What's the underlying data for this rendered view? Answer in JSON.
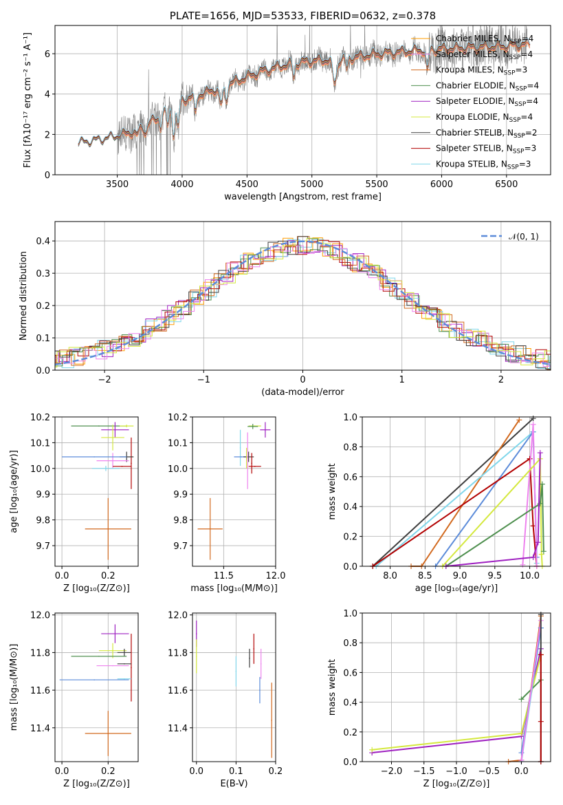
{
  "colors": {
    "Chabrier MILES": "#ff9c00",
    "Salpeter MILES": "#ee82ee",
    "Kroupa MILES": "#d2691e",
    "Chabrier ELODIE": "#4e8f4e",
    "Salpeter ELODIE": "#9e1fc0",
    "Kroupa ELODIE": "#d4e83c",
    "Chabrier STELIB": "#3d3d3d",
    "Salpeter STELIB": "#b20000",
    "Kroupa STELIB": "#7fd6ea",
    "gauss": "#5b8bd9",
    "data": "#808080"
  },
  "chart_data": [
    {
      "type": "line",
      "title": "PLATE=1656, MJD=53533, FIBERID=0632, z=0.378",
      "xlabel": "wavelength [Angstrom, rest frame]",
      "ylabel": "Flux [fλ10⁻¹⁷ erg cm⁻² s⁻¹ A⁻¹]",
      "xlim": [
        3020,
        6840
      ],
      "ylim": [
        0,
        7.4
      ],
      "xticks": [
        3500,
        4000,
        4500,
        5000,
        5500,
        6000,
        6500
      ],
      "yticks": [
        0,
        2,
        4,
        6
      ],
      "legend_position": "top-right",
      "legend": [
        {
          "label": "Chabrier MILES, N",
          "sub": "SSP",
          "tail": "=4"
        },
        {
          "label": "Salpeter MILES, N",
          "sub": "SSP",
          "tail": "=4"
        },
        {
          "label": "Kroupa MILES, N",
          "sub": "SSP",
          "tail": "=3"
        },
        {
          "label": "Chabrier ELODIE, N",
          "sub": "SSP",
          "tail": "=4"
        },
        {
          "label": "Salpeter ELODIE, N",
          "sub": "SSP",
          "tail": "=4"
        },
        {
          "label": "Kroupa ELODIE, N",
          "sub": "SSP",
          "tail": "=4"
        },
        {
          "label": "Chabrier STELIB, N",
          "sub": "SSP",
          "tail": "=2"
        },
        {
          "label": "Salpeter STELIB, N",
          "sub": "SSP",
          "tail": "=3"
        },
        {
          "label": "Kroupa STELIB, N",
          "sub": "SSP",
          "tail": "=3"
        }
      ],
      "continuum": [
        [
          3200,
          1.55
        ],
        [
          3350,
          1.7
        ],
        [
          3500,
          1.9
        ],
        [
          3650,
          2.2
        ],
        [
          3780,
          2.7
        ],
        [
          3900,
          3.2
        ],
        [
          4000,
          3.7
        ],
        [
          4200,
          4.1
        ],
        [
          4400,
          4.6
        ],
        [
          4600,
          5.1
        ],
        [
          4800,
          5.45
        ],
        [
          5000,
          5.65
        ],
        [
          5200,
          5.7
        ],
        [
          5400,
          5.9
        ],
        [
          5600,
          6.05
        ],
        [
          5800,
          6.15
        ],
        [
          6000,
          6.25
        ],
        [
          6200,
          6.3
        ],
        [
          6400,
          6.35
        ],
        [
          6650,
          6.45
        ]
      ]
    },
    {
      "type": "line",
      "xlabel": "(data-model)/error",
      "ylabel": "Normed distribution",
      "xlim": [
        -2.5,
        2.5
      ],
      "ylim": [
        0,
        0.46
      ],
      "xticks": [
        -2,
        -1,
        0,
        1,
        2
      ],
      "yticks": [
        0.0,
        0.1,
        0.2,
        0.3,
        0.4
      ],
      "legend": "𝒩(0, 1)",
      "gauss": {
        "mu": 0,
        "sigma": 1
      }
    },
    {
      "type": "scatter",
      "xlabel": "Z [log₁₀(Z/Z⊙)]",
      "ylabel": "age  [log₁₀(age/yr)]",
      "xlim": [
        -0.03,
        0.33
      ],
      "ylim": [
        9.62,
        10.2
      ],
      "xticks": [
        0.0,
        0.2
      ],
      "yticks": [
        9.7,
        9.8,
        9.9,
        10.0,
        10.1,
        10.2
      ],
      "points": [
        {
          "m": "Chabrier ELODIE",
          "x": 0.16,
          "xe": 0.12,
          "y": 10.165,
          "ye": 0.0
        },
        {
          "m": "Kroupa ELODIE",
          "x": 0.28,
          "xe": 0.03,
          "y": 10.165,
          "ye": 0.005
        },
        {
          "m": "Salpeter ELODIE",
          "x": 0.23,
          "xe": 0.06,
          "y": 10.15,
          "ye": 0.03
        },
        {
          "m": "Kroupa ELODIE",
          "x": 0.22,
          "xe": 0.05,
          "y": 10.12,
          "ye": 0.05
        },
        {
          "m": "Salpeter STELIB",
          "x": 0.3,
          "xe": 0.0,
          "y": 10.02,
          "ye": 0.1
        },
        {
          "m": "Chabrier STELIB",
          "x": 0.28,
          "xe": 0.03,
          "y": 10.045,
          "ye": 0.02
        },
        {
          "m": "Salpeter MILES",
          "x": 0.22,
          "xe": 0.07,
          "y": 10.03,
          "ye": 0.03
        },
        {
          "m": "Kroupa STELIB",
          "x": 0.19,
          "xe": 0.06,
          "y": 10.0,
          "ye": 0.01
        },
        {
          "m": "Salpeter STELIB",
          "x": 0.26,
          "xe": 0.04,
          "y": 10.008,
          "ye": 0.0
        },
        {
          "m": "gauss",
          "x": 0.14,
          "xe": 0.14,
          "y": 10.045,
          "ye": 0.0
        },
        {
          "m": "Kroupa MILES",
          "x": 0.2,
          "xe": 0.1,
          "y": 9.765,
          "ye": 0.12
        }
      ]
    },
    {
      "type": "scatter",
      "xlabel": "mass [log₁₀(M/M⊙)]",
      "xlim": [
        11.2,
        12.0
      ],
      "ylim": [
        9.62,
        10.2
      ],
      "xticks": [
        11.5,
        12.0
      ],
      "yticks": [
        9.7,
        9.8,
        9.9,
        10.0,
        10.1,
        10.2
      ],
      "points": [
        {
          "m": "Kroupa ELODIE",
          "x": 11.8,
          "xe": 0.06,
          "y": 10.165,
          "ye": 0.0
        },
        {
          "m": "Chabrier ELODIE",
          "x": 11.78,
          "xe": 0.05,
          "y": 10.163,
          "ye": 0.01
        },
        {
          "m": "Salpeter ELODIE",
          "x": 11.9,
          "xe": 0.05,
          "y": 10.15,
          "ye": 0.03
        },
        {
          "m": "Kroupa STELIB",
          "x": 11.66,
          "xe": 0.0,
          "y": 10.08,
          "ye": 0.07
        },
        {
          "m": "gauss",
          "x": 11.67,
          "xe": 0.07,
          "y": 10.045,
          "ye": 0.0
        },
        {
          "m": "Chabrier STELIB",
          "x": 11.74,
          "xe": 0.05,
          "y": 10.045,
          "ye": 0.02
        },
        {
          "m": "Salpeter MILES",
          "x": 11.73,
          "xe": 0.0,
          "y": 10.03,
          "ye": 0.11
        },
        {
          "m": "Kroupa ELODIE",
          "x": 11.72,
          "xe": 0.0,
          "y": 10.04,
          "ye": 0.04
        },
        {
          "m": "Salpeter STELIB",
          "x": 11.8,
          "xe": 0.06,
          "y": 10.008,
          "ye": 0.0
        },
        {
          "m": "Salpeter STELIB",
          "x": 11.77,
          "xe": 0.0,
          "y": 10.02,
          "ye": 0.04
        },
        {
          "m": "Kroupa MILES",
          "x": 11.37,
          "xe": 0.12,
          "y": 9.765,
          "ye": 0.12
        }
      ]
    },
    {
      "type": "line",
      "xlabel": "age  [log₁₀(age/yr)]",
      "ylabel": "mass weight",
      "xlim": [
        7.6,
        10.3
      ],
      "ylim": [
        0,
        1.0
      ],
      "xticks": [
        8.0,
        8.5,
        9.0,
        9.5,
        10.0
      ],
      "yticks": [
        0.0,
        0.2,
        0.4,
        0.6,
        0.8,
        1.0
      ],
      "series": [
        {
          "m": "Chabrier STELIB",
          "x": [
            7.75,
            10.05
          ],
          "y": [
            0.0,
            0.99
          ]
        },
        {
          "m": "Kroupa MILES",
          "x": [
            8.3,
            8.45,
            9.85
          ],
          "y": [
            0.0,
            0.0,
            0.98
          ]
        },
        {
          "m": "Kroupa STELIB",
          "x": [
            7.8,
            10.05,
            10.1
          ],
          "y": [
            0.0,
            0.9,
            0.02
          ]
        },
        {
          "m": "gauss",
          "x": [
            8.65,
            10.05,
            10.1
          ],
          "y": [
            0.0,
            0.9,
            0.06
          ]
        },
        {
          "m": "Salpeter STELIB",
          "x": [
            7.75,
            10.0,
            10.05,
            10.1
          ],
          "y": [
            0.0,
            0.72,
            0.27,
            0.0
          ]
        },
        {
          "m": "Salpeter MILES",
          "x": [
            9.9,
            10.05,
            10.1
          ],
          "y": [
            0.01,
            0.95,
            0.0
          ]
        },
        {
          "m": "Kroupa ELODIE",
          "x": [
            8.75,
            10.15,
            10.17,
            10.18
          ],
          "y": [
            0.0,
            0.72,
            0.08,
            0.0
          ]
        },
        {
          "m": "Chabrier ELODIE",
          "x": [
            8.8,
            10.15,
            10.18,
            10.2
          ],
          "y": [
            0.0,
            0.42,
            0.55,
            0.1
          ]
        },
        {
          "m": "Salpeter ELODIE",
          "x": [
            8.8,
            10.05,
            10.12,
            10.15
          ],
          "y": [
            0.0,
            0.06,
            0.16,
            0.76
          ]
        }
      ]
    },
    {
      "type": "scatter",
      "xlabel": "Z [log₁₀(Z/Z⊙)]",
      "ylabel": "mass [log₁₀(M/M⊙)]",
      "xlim": [
        -0.03,
        0.33
      ],
      "ylim": [
        11.22,
        12.01
      ],
      "xticks": [
        0.0,
        0.2
      ],
      "yticks": [
        11.4,
        11.6,
        11.8,
        12.0
      ],
      "points": [
        {
          "m": "Salpeter ELODIE",
          "x": 0.23,
          "xe": 0.06,
          "y": 11.9,
          "ye": 0.05
        },
        {
          "m": "Kroupa ELODIE",
          "x": 0.22,
          "xe": 0.06,
          "y": 11.81,
          "ye": 0.04
        },
        {
          "m": "Chabrier STELIB",
          "x": 0.27,
          "xe": 0.03,
          "y": 11.8,
          "ye": 0.02
        },
        {
          "m": "Salpeter STELIB",
          "x": 0.3,
          "xe": 0.0,
          "y": 11.72,
          "ye": 0.18
        },
        {
          "m": "Chabrier ELODIE",
          "x": 0.16,
          "xe": 0.12,
          "y": 11.78,
          "ye": 0.0
        },
        {
          "m": "Salpeter MILES",
          "x": 0.22,
          "xe": 0.07,
          "y": 11.73,
          "ye": 0.0
        },
        {
          "m": "Chabrier STELIB",
          "x": 0.27,
          "xe": 0.03,
          "y": 11.74,
          "ye": 0.0
        },
        {
          "m": "Kroupa STELIB",
          "x": 0.27,
          "xe": 0.03,
          "y": 11.66,
          "ye": 0.0
        },
        {
          "m": "gauss",
          "x": 0.14,
          "xe": 0.15,
          "y": 11.655,
          "ye": 0.0
        },
        {
          "m": "Kroupa MILES",
          "x": 0.2,
          "xe": 0.1,
          "y": 11.37,
          "ye": 0.12
        }
      ]
    },
    {
      "type": "scatter",
      "xlabel": "E(B-V)",
      "xlim": [
        -0.01,
        0.2
      ],
      "ylim": [
        11.22,
        12.01
      ],
      "xticks": [
        0.0,
        0.1,
        0.2
      ],
      "yticks": [
        11.4,
        11.6,
        11.8,
        12.0
      ],
      "points": [
        {
          "m": "Salpeter ELODIE",
          "x": 0.0,
          "xe": 0.0,
          "y": 11.9,
          "ye": 0.07
        },
        {
          "m": "Kroupa ELODIE",
          "x": 0.0,
          "xe": 0.0,
          "y": 11.78,
          "ye": 0.09
        },
        {
          "m": "Kroupa STELIB",
          "x": 0.1,
          "xe": 0.0,
          "y": 11.7,
          "ye": 0.08
        },
        {
          "m": "Chabrier STELIB",
          "x": 0.134,
          "xe": 0.0,
          "y": 11.77,
          "ye": 0.05
        },
        {
          "m": "Salpeter STELIB",
          "x": 0.145,
          "xe": 0.0,
          "y": 11.82,
          "ye": 0.08
        },
        {
          "m": "Salpeter MILES",
          "x": 0.163,
          "xe": 0.0,
          "y": 11.74,
          "ye": 0.08
        },
        {
          "m": "gauss",
          "x": 0.16,
          "xe": 0.0,
          "y": 11.6,
          "ye": 0.07
        },
        {
          "m": "Kroupa MILES",
          "x": 0.19,
          "xe": 0.0,
          "y": 11.44,
          "ye": 0.2
        }
      ]
    },
    {
      "type": "line",
      "xlabel": "Z [log₁₀(Z/Z⊙)]",
      "ylabel": "mass weight",
      "xlim": [
        -2.45,
        0.45
      ],
      "ylim": [
        0,
        1.0
      ],
      "xticks": [
        -2.0,
        -1.5,
        -1.0,
        -0.5,
        0.0
      ],
      "yticks": [
        0.0,
        0.2,
        0.4,
        0.6,
        0.8,
        1.0
      ],
      "series": [
        {
          "m": "Salpeter ELODIE",
          "x": [
            -2.3,
            0.0,
            0.3
          ],
          "y": [
            0.06,
            0.17,
            0.76
          ]
        },
        {
          "m": "Kroupa ELODIE",
          "x": [
            -2.3,
            0.0,
            0.3
          ],
          "y": [
            0.08,
            0.19,
            0.72
          ]
        },
        {
          "m": "Kroupa MILES",
          "x": [
            -0.2,
            0.0,
            0.3
          ],
          "y": [
            0.0,
            0.01,
            0.98
          ]
        },
        {
          "m": "Chabrier ELODIE",
          "x": [
            0.0,
            0.3
          ],
          "y": [
            0.42,
            0.55
          ]
        },
        {
          "m": "Kroupa STELIB",
          "x": [
            0.0,
            0.3
          ],
          "y": [
            0.0,
            0.9
          ]
        },
        {
          "m": "gauss",
          "x": [
            0.0,
            0.3
          ],
          "y": [
            0.06,
            0.9
          ]
        },
        {
          "m": "Salpeter MILES",
          "x": [
            0.0,
            0.3
          ],
          "y": [
            0.01,
            0.95
          ]
        },
        {
          "m": "Chabrier STELIB",
          "x": [
            0.3,
            0.3
          ],
          "y": [
            0.0,
            0.99
          ]
        },
        {
          "m": "Salpeter STELIB",
          "x": [
            0.3,
            0.3,
            0.3
          ],
          "y": [
            0.0,
            0.72,
            0.27
          ]
        }
      ]
    }
  ]
}
